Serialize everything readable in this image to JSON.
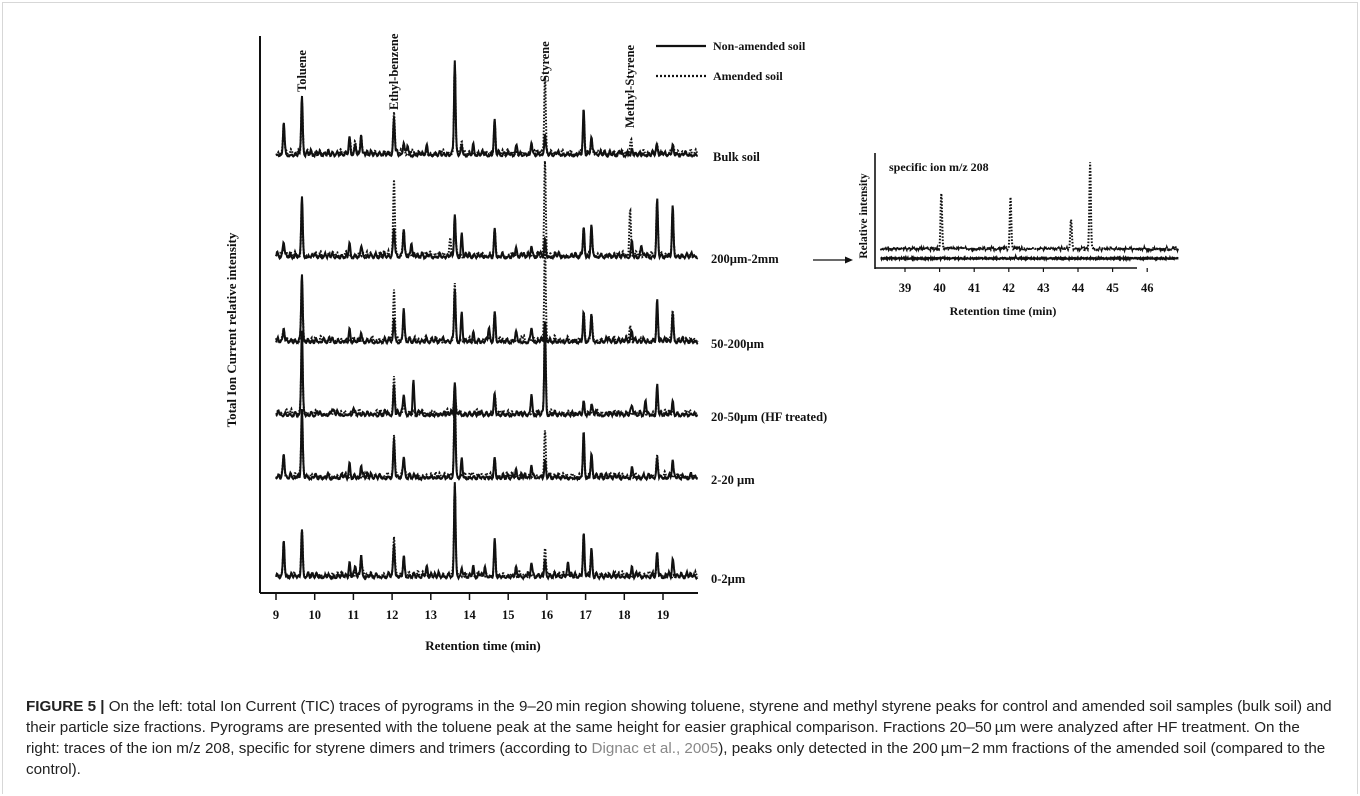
{
  "figure": {
    "main_chart": {
      "ylabel": "Total Ion Current relative intensity",
      "xlabel": "Retention time (min)",
      "x_ticks": [
        "9",
        "10",
        "11",
        "12",
        "13",
        "14",
        "15",
        "16",
        "17",
        "18",
        "19"
      ],
      "peak_labels": [
        "Toluene",
        "Ethyl-benzene",
        "Styrene",
        "Methyl-Styrene"
      ],
      "legend": {
        "solid": "Non-amended soil",
        "dotted": "Amended soil"
      },
      "trace_labels": [
        "Bulk soil",
        "200µm-2mm",
        "50-200µm",
        "20-50µm (HF treated)",
        "2-20 µm",
        "0-2µm"
      ]
    },
    "inset_chart": {
      "title": "specific ion m/z 208",
      "ylabel": "Relative intensity",
      "xlabel": "Retention time (min)",
      "x_ticks": [
        "39",
        "40",
        "41",
        "42",
        "43",
        "44",
        "45",
        "46"
      ]
    }
  },
  "chart_data": [
    {
      "type": "line",
      "ylabel": "Total Ion Current relative intensity",
      "xlabel": "Retention time (min)",
      "xlim": [
        9,
        20
      ],
      "annotations": [
        {
          "text": "Toluene",
          "x": 9.67
        },
        {
          "text": "Ethyl-benzene",
          "x": 12.05
        },
        {
          "text": "Styrene",
          "x": 15.95
        },
        {
          "text": "Methyl-Styrene",
          "x": 18.15
        }
      ],
      "legend": [
        "Non-amended soil",
        "Amended soil"
      ],
      "traces": [
        {
          "name": "Bulk soil",
          "solid": [
            [
              9.2,
              0.35
            ],
            [
              9.67,
              0.62
            ],
            [
              10.9,
              0.15
            ],
            [
              11.05,
              0.12
            ],
            [
              11.2,
              0.22
            ],
            [
              12.05,
              0.38
            ],
            [
              12.3,
              0.13
            ],
            [
              12.4,
              0.1
            ],
            [
              12.9,
              0.1
            ],
            [
              13.62,
              1.0
            ],
            [
              13.8,
              0.1
            ],
            [
              14.1,
              0.08
            ],
            [
              14.65,
              0.36
            ],
            [
              15.2,
              0.08
            ],
            [
              15.6,
              0.14
            ],
            [
              15.95,
              0.22
            ],
            [
              16.95,
              0.45
            ],
            [
              17.15,
              0.2
            ],
            [
              18.2,
              0.06
            ],
            [
              18.85,
              0.08
            ],
            [
              19.25,
              0.08
            ]
          ],
          "dotted": [
            [
              9.2,
              0.3
            ],
            [
              9.67,
              0.55
            ],
            [
              10.9,
              0.14
            ],
            [
              11.05,
              0.1
            ],
            [
              11.2,
              0.2
            ],
            [
              12.05,
              0.42
            ],
            [
              12.3,
              0.12
            ],
            [
              13.62,
              0.95
            ],
            [
              13.8,
              0.1
            ],
            [
              14.65,
              0.3
            ],
            [
              15.6,
              0.12
            ],
            [
              15.95,
              0.82
            ],
            [
              16.95,
              0.38
            ],
            [
              17.15,
              0.18
            ],
            [
              18.18,
              0.14
            ],
            [
              18.85,
              0.1
            ],
            [
              19.25,
              0.1
            ]
          ]
        },
        {
          "name": "200µm-2mm",
          "solid": [
            [
              9.2,
              0.15
            ],
            [
              9.67,
              0.62
            ],
            [
              10.9,
              0.1
            ],
            [
              11.2,
              0.1
            ],
            [
              12.05,
              0.3
            ],
            [
              12.3,
              0.3
            ],
            [
              12.5,
              0.15
            ],
            [
              13.62,
              0.45
            ],
            [
              13.8,
              0.25
            ],
            [
              14.65,
              0.3
            ],
            [
              15.2,
              0.1
            ],
            [
              15.6,
              0.12
            ],
            [
              15.95,
              0.18
            ],
            [
              16.95,
              0.3
            ],
            [
              17.15,
              0.35
            ],
            [
              18.2,
              0.14
            ],
            [
              18.45,
              0.1
            ],
            [
              18.85,
              0.6
            ],
            [
              19.25,
              0.55
            ]
          ],
          "dotted": [
            [
              9.2,
              0.12
            ],
            [
              9.67,
              0.55
            ],
            [
              12.05,
              0.8
            ],
            [
              12.3,
              0.28
            ],
            [
              13.5,
              0.2
            ],
            [
              13.62,
              0.4
            ],
            [
              14.65,
              0.28
            ],
            [
              15.95,
              1.0
            ],
            [
              16.95,
              0.28
            ],
            [
              17.15,
              0.3
            ],
            [
              18.15,
              0.5
            ],
            [
              18.85,
              0.55
            ],
            [
              19.25,
              0.5
            ]
          ]
        },
        {
          "name": "50-200µm",
          "solid": [
            [
              9.2,
              0.15
            ],
            [
              9.67,
              0.72
            ],
            [
              10.9,
              0.14
            ],
            [
              11.2,
              0.1
            ],
            [
              12.05,
              0.25
            ],
            [
              12.3,
              0.35
            ],
            [
              13.62,
              0.55
            ],
            [
              13.8,
              0.3
            ],
            [
              14.1,
              0.1
            ],
            [
              14.5,
              0.15
            ],
            [
              14.65,
              0.3
            ],
            [
              15.2,
              0.1
            ],
            [
              15.6,
              0.14
            ],
            [
              15.95,
              0.22
            ],
            [
              16.95,
              0.3
            ],
            [
              17.15,
              0.3
            ],
            [
              18.2,
              0.1
            ],
            [
              18.85,
              0.4
            ],
            [
              19.25,
              0.3
            ]
          ],
          "dotted": [
            [
              9.2,
              0.12
            ],
            [
              9.67,
              0.65
            ],
            [
              12.05,
              0.55
            ],
            [
              12.3,
              0.3
            ],
            [
              13.62,
              0.6
            ],
            [
              14.65,
              0.25
            ],
            [
              15.95,
              1.0
            ],
            [
              16.95,
              0.28
            ],
            [
              17.15,
              0.28
            ],
            [
              18.15,
              0.15
            ],
            [
              18.85,
              0.35
            ],
            [
              19.25,
              0.28
            ]
          ]
        },
        {
          "name": "20-50µm (HF treated)",
          "solid": [
            [
              9.67,
              0.9
            ],
            [
              10.5,
              0.06
            ],
            [
              11.0,
              0.08
            ],
            [
              12.05,
              0.3
            ],
            [
              12.3,
              0.2
            ],
            [
              12.55,
              0.35
            ],
            [
              13.62,
              0.35
            ],
            [
              14.65,
              0.22
            ],
            [
              15.6,
              0.2
            ],
            [
              15.95,
              0.9
            ],
            [
              16.95,
              0.15
            ],
            [
              17.15,
              0.1
            ],
            [
              18.2,
              0.1
            ],
            [
              18.55,
              0.15
            ],
            [
              18.85,
              0.3
            ],
            [
              19.25,
              0.15
            ]
          ],
          "dotted": [
            [
              9.67,
              0.8
            ],
            [
              12.05,
              0.4
            ],
            [
              12.3,
              0.18
            ],
            [
              13.62,
              0.3
            ],
            [
              14.65,
              0.2
            ],
            [
              15.95,
              0.95
            ],
            [
              16.95,
              0.12
            ],
            [
              18.85,
              0.25
            ]
          ]
        },
        {
          "name": "2-20 µm",
          "solid": [
            [
              9.2,
              0.25
            ],
            [
              9.67,
              0.72
            ],
            [
              10.9,
              0.15
            ],
            [
              11.2,
              0.14
            ],
            [
              12.05,
              0.4
            ],
            [
              12.3,
              0.2
            ],
            [
              13.62,
              0.85
            ],
            [
              13.8,
              0.2
            ],
            [
              14.65,
              0.22
            ],
            [
              15.2,
              0.1
            ],
            [
              15.6,
              0.14
            ],
            [
              15.95,
              0.18
            ],
            [
              16.95,
              0.45
            ],
            [
              17.15,
              0.25
            ],
            [
              18.2,
              0.08
            ],
            [
              18.85,
              0.22
            ],
            [
              19.25,
              0.2
            ]
          ],
          "dotted": [
            [
              9.2,
              0.22
            ],
            [
              9.67,
              0.65
            ],
            [
              12.05,
              0.45
            ],
            [
              12.3,
              0.18
            ],
            [
              13.62,
              0.95
            ],
            [
              14.65,
              0.2
            ],
            [
              15.95,
              0.45
            ],
            [
              16.95,
              0.4
            ],
            [
              17.15,
              0.22
            ],
            [
              18.85,
              0.2
            ]
          ]
        },
        {
          "name": "0-2µm",
          "solid": [
            [
              9.2,
              0.4
            ],
            [
              9.67,
              0.5
            ],
            [
              10.9,
              0.14
            ],
            [
              11.05,
              0.12
            ],
            [
              11.2,
              0.22
            ],
            [
              12.05,
              0.35
            ],
            [
              12.3,
              0.2
            ],
            [
              12.9,
              0.12
            ],
            [
              13.62,
              1.0
            ],
            [
              13.8,
              0.1
            ],
            [
              14.1,
              0.12
            ],
            [
              14.4,
              0.12
            ],
            [
              14.65,
              0.38
            ],
            [
              15.2,
              0.1
            ],
            [
              15.6,
              0.16
            ],
            [
              15.95,
              0.2
            ],
            [
              16.55,
              0.14
            ],
            [
              16.95,
              0.45
            ],
            [
              17.15,
              0.3
            ],
            [
              18.2,
              0.08
            ],
            [
              18.85,
              0.25
            ],
            [
              19.25,
              0.18
            ]
          ],
          "dotted": [
            [
              9.2,
              0.35
            ],
            [
              9.67,
              0.45
            ],
            [
              11.2,
              0.2
            ],
            [
              12.05,
              0.4
            ],
            [
              12.3,
              0.18
            ],
            [
              13.62,
              0.95
            ],
            [
              14.65,
              0.32
            ],
            [
              15.95,
              0.3
            ],
            [
              16.95,
              0.4
            ],
            [
              17.15,
              0.28
            ],
            [
              18.85,
              0.22
            ]
          ]
        }
      ]
    },
    {
      "type": "line",
      "title": "specific ion m/z 208",
      "ylabel": "Relative intensity",
      "xlabel": "Retention time (min)",
      "xlim": [
        38.3,
        46.9
      ],
      "legend": [
        "Non-amended soil",
        "Amended soil"
      ],
      "series": [
        {
          "name": "Non-amended soil",
          "peaks": [
            [
              40.1,
              0.03
            ],
            [
              42.2,
              0.03
            ]
          ]
        },
        {
          "name": "Amended soil",
          "peaks": [
            [
              40.05,
              0.65
            ],
            [
              42.05,
              0.6
            ],
            [
              43.8,
              0.35
            ],
            [
              44.35,
              1.0
            ]
          ]
        }
      ]
    }
  ],
  "caption": {
    "label": "FIGURE 5 |",
    "text_before": " On the left: total Ion Current (TIC) traces of pyrograms in the 9–20 min region showing toluene, styrene and methyl styrene peaks for control and amended soil samples (bulk soil) and their particle size fractions. Pyrograms are presented with the toluene peak at the same height for easier graphical comparison. Fractions 20–50 µm were analyzed after HF treatment. On the right: traces of the ion m/z 208, specific for styrene dimers and trimers (according to ",
    "citation": "Dignac et al., 2005",
    "text_after": "), peaks only detected in the 200 µm−2 mm fractions of the amended soil (compared to the control)."
  }
}
